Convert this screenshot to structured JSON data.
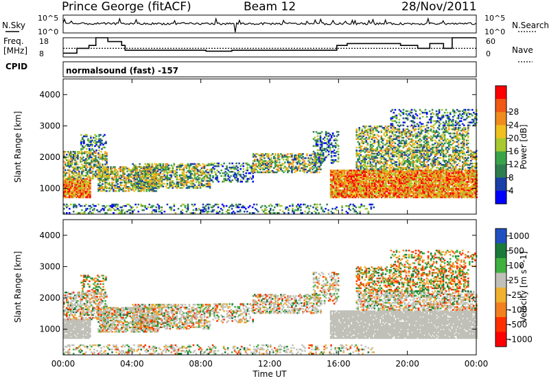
{
  "header": {
    "station": "Prince George (fitACF)",
    "beam": "Beam 12",
    "date": "28/Nov/2011"
  },
  "top_panels": {
    "nsky_label": "N.Sky",
    "nsearch_label": "N.Search",
    "nsky_hi": "10^5",
    "nsky_lo": "10^0",
    "nsearch_hi": "10^5",
    "nsearch_lo": "10^0",
    "freq_label": "Freq.",
    "freq_unit": "[MHz]",
    "freq_ticks": [
      "18",
      "8"
    ],
    "nave_label": "Nave",
    "nave_ticks": [
      "60",
      "0"
    ],
    "cpid_label": "CPID",
    "cpid_value": "normalsound (fast) -157"
  },
  "colors": {
    "power_scale": [
      "#0000ff",
      "#1a3fa8",
      "#2e7d4f",
      "#3aa34a",
      "#a8c832",
      "#f0c020",
      "#f08c1e",
      "#f05a14",
      "#ff0000"
    ],
    "velocity_scale": [
      "#2050c0",
      "#1a7a3a",
      "#40b040",
      "#c0c0b8",
      "#f0b030",
      "#f08020",
      "#ff3000",
      "#ff0000"
    ],
    "ground_scatter": "#c0c0b8"
  },
  "chart_data": [
    {
      "type": "heatmap",
      "title": "Power",
      "ylabel": "Slant Range [km]",
      "ylim": [
        180,
        4500
      ],
      "yticks": [
        "1000",
        "2000",
        "3000",
        "4000"
      ],
      "xlabel": "Time UT",
      "xlim": [
        "00:00",
        "24:00"
      ],
      "xticks": [
        "00:00",
        "04:00",
        "08:00",
        "12:00",
        "16:00",
        "20:00",
        "00:00"
      ],
      "colorbar_label": "Power [dB]",
      "colorbar_ticks": [
        "4",
        "8",
        "12",
        "16",
        "20",
        "24",
        "28"
      ],
      "colorbar_range": [
        0,
        32
      ]
    },
    {
      "type": "heatmap",
      "title": "Velocity",
      "ylabel": "Slant Range [km]",
      "ylim": [
        180,
        4500
      ],
      "yticks": [
        "1000",
        "2000",
        "3000",
        "4000"
      ],
      "xlabel": "Time UT",
      "xlim": [
        "00:00",
        "24:00"
      ],
      "xticks": [
        "00:00",
        "04:00",
        "08:00",
        "12:00",
        "16:00",
        "20:00",
        "00:00"
      ],
      "colorbar_label": "Velocity [m s^-1]",
      "colorbar_ticks": [
        "1000",
        "500",
        "100",
        "25",
        "-25",
        "-100",
        "-500",
        "-1000"
      ]
    }
  ]
}
